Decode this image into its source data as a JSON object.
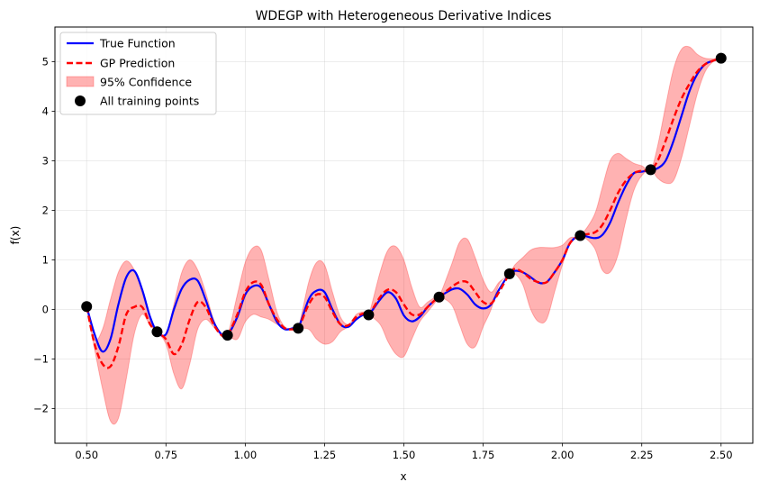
{
  "chart_data": {
    "type": "line",
    "title": "WDEGP with Heterogeneous Derivative Indices",
    "xlabel": "x",
    "ylabel": "f(x)",
    "xlim": [
      0.4,
      2.6
    ],
    "ylim": [
      -2.7,
      5.7
    ],
    "grid": true,
    "legend_position": "upper-left",
    "xticks": [
      0.5,
      0.75,
      1.0,
      1.25,
      1.5,
      1.75,
      2.0,
      2.25,
      2.5
    ],
    "xtick_labels": [
      "0.50",
      "0.75",
      "1.00",
      "1.25",
      "1.50",
      "1.75",
      "2.00",
      "2.25",
      "2.50"
    ],
    "yticks": [
      -2,
      -1,
      0,
      1,
      2,
      3,
      4,
      5
    ],
    "ytick_labels": [
      "−2",
      "−1",
      "0",
      "1",
      "2",
      "3",
      "4",
      "5"
    ],
    "legend": [
      {
        "label": "True Function",
        "kind": "line",
        "color": "#0000ff",
        "dash": "solid"
      },
      {
        "label": "GP Prediction",
        "kind": "line",
        "color": "#ff0000",
        "dash": "dashed"
      },
      {
        "label": "95% Confidence",
        "kind": "band",
        "color": "#ff9999"
      },
      {
        "label": "All training points",
        "kind": "marker",
        "color": "#000000"
      }
    ],
    "colors": {
      "true": "#0000ff",
      "pred": "#ff0000",
      "band_fill": "#ff0000",
      "train": "#000000"
    },
    "training_points": {
      "x": [
        0.5,
        0.722,
        0.944,
        1.167,
        1.389,
        1.611,
        1.833,
        2.056,
        2.278,
        2.5
      ],
      "y": [
        0.06,
        -0.45,
        -0.52,
        -0.38,
        -0.11,
        0.25,
        0.72,
        1.49,
        2.82,
        5.07
      ]
    },
    "series": [
      {
        "name": "True Function",
        "x": [
          0.5,
          0.525,
          0.55,
          0.575,
          0.6,
          0.625,
          0.65,
          0.675,
          0.7,
          0.722,
          0.75,
          0.775,
          0.8,
          0.825,
          0.85,
          0.875,
          0.9,
          0.925,
          0.944,
          0.975,
          1.0,
          1.025,
          1.05,
          1.075,
          1.1,
          1.125,
          1.15,
          1.167,
          1.2,
          1.225,
          1.25,
          1.275,
          1.3,
          1.325,
          1.35,
          1.375,
          1.389,
          1.425,
          1.45,
          1.475,
          1.5,
          1.525,
          1.55,
          1.575,
          1.6,
          1.611,
          1.65,
          1.675,
          1.7,
          1.725,
          1.75,
          1.775,
          1.8,
          1.833,
          1.85,
          1.875,
          1.9,
          1.925,
          1.95,
          1.975,
          2.0,
          2.025,
          2.056,
          2.1,
          2.125,
          2.15,
          2.175,
          2.2,
          2.225,
          2.25,
          2.278,
          2.3,
          2.325,
          2.35,
          2.375,
          2.4,
          2.425,
          2.45,
          2.475,
          2.5
        ],
        "y": [
          0.06,
          -0.5,
          -0.85,
          -0.6,
          0.1,
          0.65,
          0.78,
          0.4,
          -0.15,
          -0.45,
          -0.5,
          0.0,
          0.42,
          0.6,
          0.58,
          0.2,
          -0.25,
          -0.5,
          -0.52,
          -0.15,
          0.3,
          0.47,
          0.44,
          0.1,
          -0.25,
          -0.4,
          -0.38,
          -0.38,
          0.2,
          0.38,
          0.35,
          0.0,
          -0.3,
          -0.35,
          -0.2,
          -0.1,
          -0.11,
          0.2,
          0.35,
          0.22,
          -0.12,
          -0.24,
          -0.15,
          0.05,
          0.2,
          0.25,
          0.4,
          0.42,
          0.3,
          0.1,
          0.02,
          0.1,
          0.4,
          0.72,
          0.78,
          0.75,
          0.65,
          0.54,
          0.55,
          0.75,
          1.0,
          1.35,
          1.49,
          1.44,
          1.5,
          1.75,
          2.15,
          2.5,
          2.75,
          2.78,
          2.82,
          2.85,
          3.0,
          3.4,
          3.9,
          4.4,
          4.75,
          4.95,
          5.02,
          5.07
        ]
      },
      {
        "name": "GP Prediction",
        "x": [
          0.5,
          0.525,
          0.55,
          0.575,
          0.6,
          0.625,
          0.65,
          0.675,
          0.7,
          0.722,
          0.75,
          0.775,
          0.8,
          0.825,
          0.85,
          0.875,
          0.9,
          0.925,
          0.944,
          0.975,
          1.0,
          1.025,
          1.05,
          1.075,
          1.1,
          1.125,
          1.15,
          1.167,
          1.2,
          1.225,
          1.25,
          1.275,
          1.3,
          1.325,
          1.35,
          1.375,
          1.389,
          1.425,
          1.45,
          1.475,
          1.5,
          1.525,
          1.55,
          1.575,
          1.6,
          1.611,
          1.65,
          1.675,
          1.7,
          1.725,
          1.75,
          1.775,
          1.8,
          1.833,
          1.85,
          1.875,
          1.9,
          1.925,
          1.95,
          1.975,
          2.0,
          2.025,
          2.056,
          2.1,
          2.125,
          2.15,
          2.175,
          2.2,
          2.225,
          2.25,
          2.278,
          2.3,
          2.325,
          2.35,
          2.375,
          2.4,
          2.425,
          2.45,
          2.475,
          2.5
        ],
        "y": [
          0.06,
          -0.7,
          -1.1,
          -1.15,
          -0.75,
          -0.1,
          0.05,
          0.05,
          -0.3,
          -0.45,
          -0.6,
          -0.9,
          -0.7,
          -0.2,
          0.15,
          0.05,
          -0.3,
          -0.52,
          -0.52,
          -0.1,
          0.35,
          0.55,
          0.5,
          0.1,
          -0.2,
          -0.38,
          -0.4,
          -0.38,
          0.1,
          0.3,
          0.25,
          -0.05,
          -0.3,
          -0.32,
          -0.15,
          -0.08,
          -0.11,
          0.25,
          0.4,
          0.35,
          0.1,
          -0.1,
          -0.1,
          0.05,
          0.2,
          0.25,
          0.45,
          0.55,
          0.55,
          0.35,
          0.15,
          0.12,
          0.35,
          0.72,
          0.82,
          0.75,
          0.62,
          0.55,
          0.55,
          0.75,
          1.0,
          1.35,
          1.49,
          1.55,
          1.7,
          2.0,
          2.35,
          2.6,
          2.75,
          2.8,
          2.82,
          3.0,
          3.4,
          3.85,
          4.25,
          4.55,
          4.8,
          4.95,
          5.02,
          5.07
        ]
      }
    ],
    "confidence_band": {
      "name": "95% Confidence",
      "x": [
        0.5,
        0.525,
        0.55,
        0.575,
        0.6,
        0.625,
        0.65,
        0.675,
        0.7,
        0.722,
        0.75,
        0.775,
        0.8,
        0.825,
        0.85,
        0.875,
        0.9,
        0.925,
        0.944,
        0.975,
        1.0,
        1.025,
        1.05,
        1.075,
        1.1,
        1.125,
        1.15,
        1.167,
        1.2,
        1.225,
        1.25,
        1.275,
        1.3,
        1.325,
        1.35,
        1.375,
        1.389,
        1.425,
        1.45,
        1.475,
        1.5,
        1.525,
        1.55,
        1.575,
        1.6,
        1.611,
        1.65,
        1.675,
        1.7,
        1.725,
        1.75,
        1.775,
        1.8,
        1.833,
        1.85,
        1.875,
        1.9,
        1.925,
        1.95,
        1.975,
        2.0,
        2.025,
        2.056,
        2.1,
        2.125,
        2.15,
        2.175,
        2.2,
        2.225,
        2.25,
        2.278,
        2.3,
        2.325,
        2.35,
        2.375,
        2.4,
        2.425,
        2.45,
        2.475,
        2.5
      ],
      "lower": [
        0.06,
        -0.8,
        -1.6,
        -2.25,
        -2.2,
        -1.4,
        -0.5,
        -0.1,
        -0.32,
        -0.45,
        -0.7,
        -1.3,
        -1.6,
        -1.1,
        -0.4,
        -0.2,
        -0.35,
        -0.52,
        -0.52,
        -0.6,
        -0.25,
        -0.1,
        -0.15,
        -0.2,
        -0.3,
        -0.38,
        -0.4,
        -0.38,
        -0.4,
        -0.6,
        -0.7,
        -0.65,
        -0.45,
        -0.35,
        -0.2,
        -0.1,
        -0.11,
        -0.3,
        -0.65,
        -0.9,
        -0.95,
        -0.6,
        -0.25,
        -0.05,
        0.15,
        0.25,
        0.1,
        -0.3,
        -0.7,
        -0.75,
        -0.35,
        0.0,
        0.5,
        0.72,
        0.72,
        0.5,
        0.0,
        -0.25,
        -0.2,
        0.35,
        0.9,
        1.35,
        1.49,
        1.25,
        0.8,
        0.75,
        1.1,
        1.8,
        2.4,
        2.7,
        2.82,
        2.65,
        2.55,
        2.6,
        3.05,
        3.7,
        4.35,
        4.8,
        5.0,
        5.07
      ],
      "upper": [
        0.06,
        -0.6,
        -0.4,
        0.2,
        0.75,
        0.98,
        0.8,
        0.35,
        -0.2,
        -0.45,
        -0.5,
        0.1,
        0.75,
        1.0,
        0.8,
        0.35,
        -0.2,
        -0.5,
        -0.52,
        0.3,
        0.95,
        1.25,
        1.2,
        0.6,
        -0.05,
        -0.35,
        -0.38,
        -0.38,
        0.55,
        0.95,
        0.9,
        0.35,
        -0.15,
        -0.3,
        -0.1,
        -0.05,
        -0.11,
        0.75,
        1.2,
        1.27,
        1.0,
        0.45,
        0.05,
        0.15,
        0.25,
        0.25,
        0.9,
        1.35,
        1.42,
        1.05,
        0.6,
        0.35,
        0.55,
        0.72,
        0.9,
        1.05,
        1.2,
        1.25,
        1.25,
        1.25,
        1.3,
        1.45,
        1.49,
        1.9,
        2.45,
        3.0,
        3.15,
        3.05,
        2.95,
        2.9,
        2.82,
        3.3,
        4.1,
        4.85,
        5.25,
        5.3,
        5.15,
        5.07,
        5.06,
        5.07
      ]
    }
  }
}
